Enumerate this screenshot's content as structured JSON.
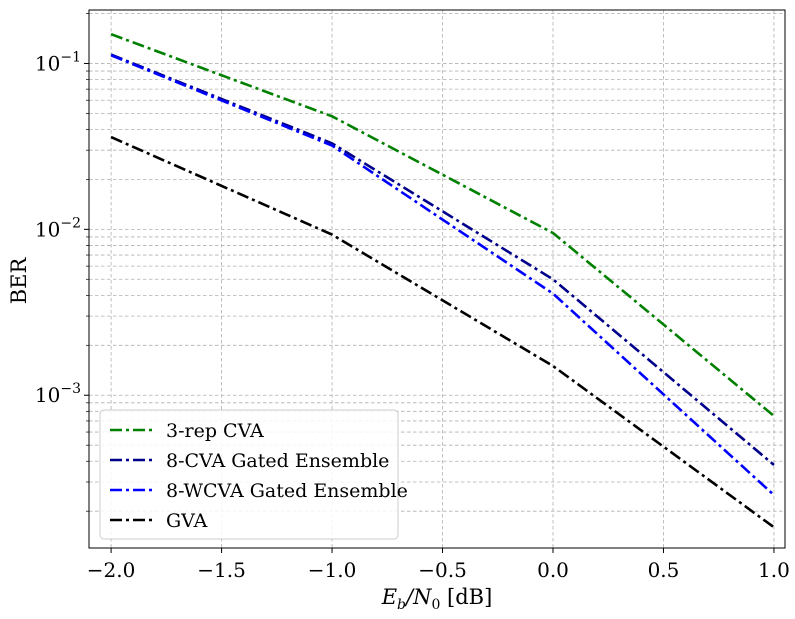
{
  "chart_data": {
    "type": "line",
    "title": "",
    "xlabel": "Eb/N0 [dB]",
    "xlabel_parts": {
      "base": "E",
      "sub1": "b",
      "slash": "/N",
      "sub2": "0",
      "unit": " [dB]"
    },
    "ylabel": "BER",
    "xlim": [
      -2.1,
      1.05
    ],
    "ylim": [
      0.00012,
      0.21
    ],
    "yscale": "log",
    "grid": true,
    "legend_position": "lower-left",
    "x_ticks": [
      -2.0,
      -1.5,
      -1.0,
      -0.5,
      0.0,
      0.5,
      1.0
    ],
    "x_tick_labels": [
      "−2.0",
      "−1.5",
      "−1.0",
      "−0.5",
      "0.0",
      "0.5",
      "1.0"
    ],
    "y_major_ticks": [
      0.001,
      0.01,
      0.1
    ],
    "y_tick_labels": [
      {
        "base": "10",
        "exp": "−3"
      },
      {
        "base": "10",
        "exp": "−2"
      },
      {
        "base": "10",
        "exp": "−1"
      }
    ],
    "x": [
      -2.0,
      -1.0,
      0.0,
      1.0
    ],
    "series": [
      {
        "name": "3-rep CVA",
        "color": "#008000",
        "values": [
          0.15,
          0.048,
          0.0095,
          0.00075
        ]
      },
      {
        "name": "8-CVA Gated Ensemble",
        "color": "#00008b",
        "values": [
          0.113,
          0.033,
          0.005,
          0.00038
        ]
      },
      {
        "name": "8-WCVA Gated Ensemble",
        "color": "#0000ff",
        "values": [
          0.112,
          0.032,
          0.0041,
          0.00025
        ]
      },
      {
        "name": "GVA",
        "color": "#000000",
        "values": [
          0.036,
          0.0093,
          0.0015,
          0.00016
        ]
      }
    ]
  }
}
